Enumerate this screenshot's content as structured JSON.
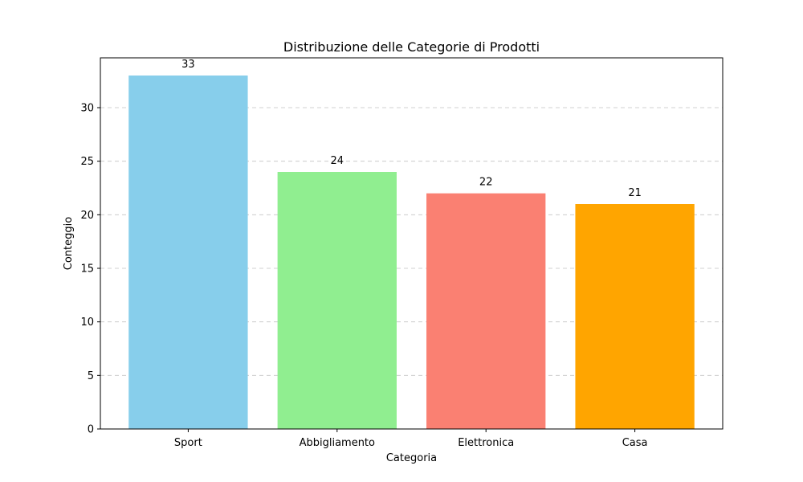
{
  "chart_data": {
    "type": "bar",
    "title": "Distribuzione delle Categorie di Prodotti",
    "xlabel": "Categoria",
    "ylabel": "Conteggio",
    "categories": [
      "Sport",
      "Abbigliamento",
      "Elettronica",
      "Casa"
    ],
    "values": [
      33,
      24,
      22,
      21
    ],
    "data_labels": [
      "33",
      "24",
      "22",
      "21"
    ],
    "colors": [
      "#87ceeb",
      "#90ee90",
      "#fa8072",
      "#ffa500"
    ],
    "ylim": [
      0,
      34.65
    ],
    "yticks": [
      0,
      5,
      10,
      15,
      20,
      25,
      30
    ],
    "ytick_labels": [
      "0",
      "5",
      "10",
      "15",
      "20",
      "25",
      "30"
    ],
    "grid": "y-dashed",
    "legend": "none"
  }
}
